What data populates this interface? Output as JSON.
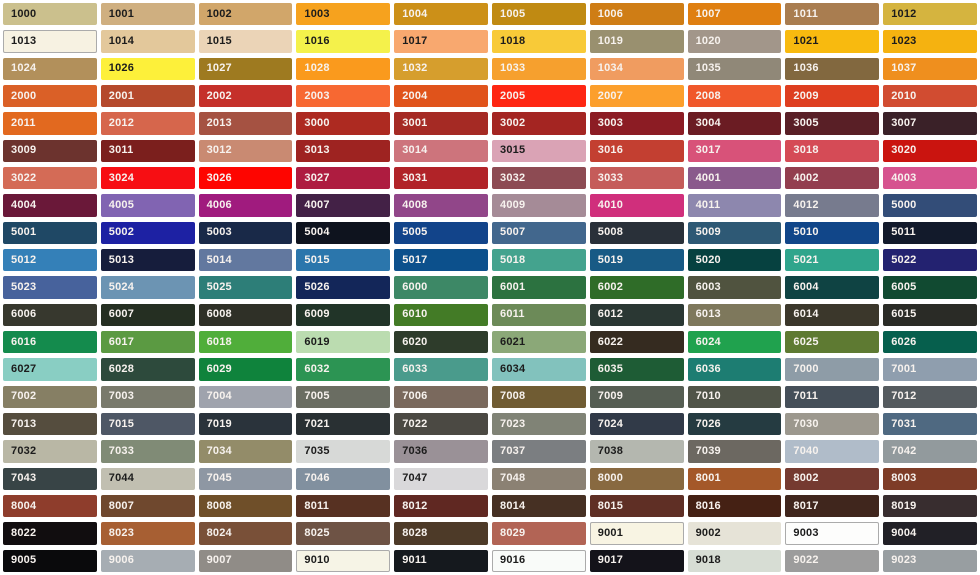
{
  "styles": {
    "background": "#FFFFFF",
    "dark_text": "#1C1C1C",
    "light_text": "#F7F2EE",
    "swatch_border": "#ABABAB"
  },
  "swatches": [
    {
      "code": "1000",
      "color": "#CBC08D",
      "text": "dark"
    },
    {
      "code": "1001",
      "color": "#CFAF80",
      "text": "dark"
    },
    {
      "code": "1002",
      "color": "#D1A66A",
      "text": "dark"
    },
    {
      "code": "1003",
      "color": "#F6A21E",
      "text": "dark"
    },
    {
      "code": "1004",
      "color": "#CC9018",
      "text": "light"
    },
    {
      "code": "1005",
      "color": "#C08A12",
      "text": "light"
    },
    {
      "code": "1006",
      "color": "#CF7D15",
      "text": "light"
    },
    {
      "code": "1007",
      "color": "#DF7F11",
      "text": "light"
    },
    {
      "code": "1011",
      "color": "#A97D50",
      "text": "light"
    },
    {
      "code": "1012",
      "color": "#D5B43F",
      "text": "dark"
    },
    {
      "code": "1013",
      "color": "#F7F2E2",
      "text": "dark",
      "bordered": true
    },
    {
      "code": "1014",
      "color": "#E3C89B",
      "text": "dark"
    },
    {
      "code": "1015",
      "color": "#EBD4B7",
      "text": "dark"
    },
    {
      "code": "1016",
      "color": "#F4F14B",
      "text": "dark"
    },
    {
      "code": "1017",
      "color": "#F8A86F",
      "text": "dark"
    },
    {
      "code": "1018",
      "color": "#F8CA38",
      "text": "dark"
    },
    {
      "code": "1019",
      "color": "#99906F",
      "text": "light"
    },
    {
      "code": "1020",
      "color": "#A2968A",
      "text": "light"
    },
    {
      "code": "1021",
      "color": "#F8BA0F",
      "text": "dark"
    },
    {
      "code": "1023",
      "color": "#F5B210",
      "text": "dark"
    },
    {
      "code": "1024",
      "color": "#B2905B",
      "text": "light"
    },
    {
      "code": "1026",
      "color": "#FDF03A",
      "text": "dark"
    },
    {
      "code": "1027",
      "color": "#9E7A20",
      "text": "light"
    },
    {
      "code": "1028",
      "color": "#FA9A1D",
      "text": "light"
    },
    {
      "code": "1032",
      "color": "#D69E2D",
      "text": "light"
    },
    {
      "code": "1033",
      "color": "#F6A02E",
      "text": "light"
    },
    {
      "code": "1034",
      "color": "#F09C60",
      "text": "light"
    },
    {
      "code": "1035",
      "color": "#908878",
      "text": "light"
    },
    {
      "code": "1036",
      "color": "#82683F",
      "text": "light"
    },
    {
      "code": "1037",
      "color": "#EF8F1E",
      "text": "light"
    },
    {
      "code": "2000",
      "color": "#DA6027",
      "text": "light"
    },
    {
      "code": "2001",
      "color": "#B5492C",
      "text": "light"
    },
    {
      "code": "2002",
      "color": "#C5302A",
      "text": "light"
    },
    {
      "code": "2003",
      "color": "#F76832",
      "text": "light"
    },
    {
      "code": "2004",
      "color": "#E0531B",
      "text": "light"
    },
    {
      "code": "2005",
      "color": "#FE2612",
      "text": "light"
    },
    {
      "code": "2007",
      "color": "#FC9F2C",
      "text": "light"
    },
    {
      "code": "2008",
      "color": "#F0582B",
      "text": "light"
    },
    {
      "code": "2009",
      "color": "#DE3E20",
      "text": "light"
    },
    {
      "code": "2010",
      "color": "#D14C31",
      "text": "light"
    },
    {
      "code": "2011",
      "color": "#E2691F",
      "text": "light"
    },
    {
      "code": "2012",
      "color": "#D6664C",
      "text": "light"
    },
    {
      "code": "2013",
      "color": "#A55242",
      "text": "light"
    },
    {
      "code": "3000",
      "color": "#AD2A21",
      "text": "light"
    },
    {
      "code": "3001",
      "color": "#A52A24",
      "text": "light"
    },
    {
      "code": "3002",
      "color": "#A42522",
      "text": "light"
    },
    {
      "code": "3003",
      "color": "#8C1C24",
      "text": "light"
    },
    {
      "code": "3004",
      "color": "#6B1C23",
      "text": "light"
    },
    {
      "code": "3005",
      "color": "#591F26",
      "text": "light"
    },
    {
      "code": "3007",
      "color": "#3A2128",
      "text": "light"
    },
    {
      "code": "3009",
      "color": "#6C332E",
      "text": "light"
    },
    {
      "code": "3011",
      "color": "#7B1F1D",
      "text": "light"
    },
    {
      "code": "3012",
      "color": "#C98A72",
      "text": "light"
    },
    {
      "code": "3013",
      "color": "#9E2321",
      "text": "light"
    },
    {
      "code": "3014",
      "color": "#CD747C",
      "text": "light"
    },
    {
      "code": "3015",
      "color": "#DAA3B5",
      "text": "dark"
    },
    {
      "code": "3016",
      "color": "#C33F31",
      "text": "light"
    },
    {
      "code": "3017",
      "color": "#D85279",
      "text": "light"
    },
    {
      "code": "3018",
      "color": "#D54B56",
      "text": "light"
    },
    {
      "code": "3020",
      "color": "#CA140F",
      "text": "light"
    },
    {
      "code": "3022",
      "color": "#D46B56",
      "text": "light"
    },
    {
      "code": "3024",
      "color": "#F70E13",
      "text": "light"
    },
    {
      "code": "3026",
      "color": "#FE0500",
      "text": "light"
    },
    {
      "code": "3027",
      "color": "#AE1C40",
      "text": "light"
    },
    {
      "code": "3031",
      "color": "#B12328",
      "text": "light"
    },
    {
      "code": "3032",
      "color": "#8D4B53",
      "text": "light"
    },
    {
      "code": "3033",
      "color": "#C55C5A",
      "text": "light"
    },
    {
      "code": "4001",
      "color": "#8A5A8C",
      "text": "light"
    },
    {
      "code": "4002",
      "color": "#933E4F",
      "text": "light"
    },
    {
      "code": "4003",
      "color": "#D6538F",
      "text": "light"
    },
    {
      "code": "4004",
      "color": "#6A1839",
      "text": "light"
    },
    {
      "code": "4005",
      "color": "#8164B2",
      "text": "light"
    },
    {
      "code": "4006",
      "color": "#A01B7E",
      "text": "light"
    },
    {
      "code": "4007",
      "color": "#432146",
      "text": "light"
    },
    {
      "code": "4008",
      "color": "#914689",
      "text": "light"
    },
    {
      "code": "4009",
      "color": "#A58B97",
      "text": "light"
    },
    {
      "code": "4010",
      "color": "#D02F7C",
      "text": "light"
    },
    {
      "code": "4011",
      "color": "#8D87AE",
      "text": "light"
    },
    {
      "code": "4012",
      "color": "#777B8E",
      "text": "light"
    },
    {
      "code": "5000",
      "color": "#334D78",
      "text": "light"
    },
    {
      "code": "5001",
      "color": "#1F4865",
      "text": "light"
    },
    {
      "code": "5002",
      "color": "#1D21A3",
      "text": "light"
    },
    {
      "code": "5003",
      "color": "#192948",
      "text": "light"
    },
    {
      "code": "5004",
      "color": "#0E131E",
      "text": "light"
    },
    {
      "code": "5005",
      "color": "#12448A",
      "text": "light"
    },
    {
      "code": "5007",
      "color": "#42678D",
      "text": "light"
    },
    {
      "code": "5008",
      "color": "#293039",
      "text": "light"
    },
    {
      "code": "5009",
      "color": "#2E5975",
      "text": "light"
    },
    {
      "code": "5010",
      "color": "#114689",
      "text": "light"
    },
    {
      "code": "5011",
      "color": "#121A2B",
      "text": "light"
    },
    {
      "code": "5012",
      "color": "#3480B8",
      "text": "light"
    },
    {
      "code": "5013",
      "color": "#161D3C",
      "text": "light"
    },
    {
      "code": "5014",
      "color": "#62789F",
      "text": "light"
    },
    {
      "code": "5015",
      "color": "#2B76AC",
      "text": "light"
    },
    {
      "code": "5017",
      "color": "#0C508C",
      "text": "light"
    },
    {
      "code": "5018",
      "color": "#44A38E",
      "text": "light"
    },
    {
      "code": "5019",
      "color": "#185A85",
      "text": "light"
    },
    {
      "code": "5020",
      "color": "#064140",
      "text": "light"
    },
    {
      "code": "5021",
      "color": "#2FA58C",
      "text": "light"
    },
    {
      "code": "5022",
      "color": "#232270",
      "text": "light"
    },
    {
      "code": "5023",
      "color": "#47629C",
      "text": "light"
    },
    {
      "code": "5024",
      "color": "#6C94B3",
      "text": "light"
    },
    {
      "code": "5025",
      "color": "#2D7E78",
      "text": "light"
    },
    {
      "code": "5026",
      "color": "#132659",
      "text": "light"
    },
    {
      "code": "6000",
      "color": "#3D8866",
      "text": "light"
    },
    {
      "code": "6001",
      "color": "#2C7240",
      "text": "light"
    },
    {
      "code": "6002",
      "color": "#2F6C28",
      "text": "light"
    },
    {
      "code": "6003",
      "color": "#50533F",
      "text": "light"
    },
    {
      "code": "6004",
      "color": "#0F4343",
      "text": "light"
    },
    {
      "code": "6005",
      "color": "#114A31",
      "text": "light"
    },
    {
      "code": "6006",
      "color": "#37382E",
      "text": "light"
    },
    {
      "code": "6007",
      "color": "#252F22",
      "text": "light"
    },
    {
      "code": "6008",
      "color": "#2F3027",
      "text": "light"
    },
    {
      "code": "6009",
      "color": "#213428",
      "text": "light"
    },
    {
      "code": "6010",
      "color": "#437B26",
      "text": "light"
    },
    {
      "code": "6011",
      "color": "#6C8A58",
      "text": "light"
    },
    {
      "code": "6012",
      "color": "#2A3733",
      "text": "light"
    },
    {
      "code": "6013",
      "color": "#7E785C",
      "text": "light"
    },
    {
      "code": "6014",
      "color": "#3B372B",
      "text": "light"
    },
    {
      "code": "6015",
      "color": "#2A2B26",
      "text": "light"
    },
    {
      "code": "6016",
      "color": "#148B4D",
      "text": "light"
    },
    {
      "code": "6017",
      "color": "#5B9A42",
      "text": "light"
    },
    {
      "code": "6018",
      "color": "#50AE3A",
      "text": "light"
    },
    {
      "code": "6019",
      "color": "#BBDCB0",
      "text": "dark"
    },
    {
      "code": "6020",
      "color": "#2E3C2B",
      "text": "light"
    },
    {
      "code": "6021",
      "color": "#8BA878",
      "text": "dark"
    },
    {
      "code": "6022",
      "color": "#352B20",
      "text": "light"
    },
    {
      "code": "6024",
      "color": "#20A24E",
      "text": "light"
    },
    {
      "code": "6025",
      "color": "#5E7A32",
      "text": "light"
    },
    {
      "code": "6026",
      "color": "#065F4D",
      "text": "light"
    },
    {
      "code": "6027",
      "color": "#89CEC3",
      "text": "dark"
    },
    {
      "code": "6028",
      "color": "#2D4A3C",
      "text": "light"
    },
    {
      "code": "6029",
      "color": "#0F833C",
      "text": "light"
    },
    {
      "code": "6032",
      "color": "#2C9453",
      "text": "light"
    },
    {
      "code": "6033",
      "color": "#4A9B8C",
      "text": "light"
    },
    {
      "code": "6034",
      "color": "#82C2BD",
      "text": "dark"
    },
    {
      "code": "6035",
      "color": "#1E5C35",
      "text": "light"
    },
    {
      "code": "6036",
      "color": "#1D7D72",
      "text": "light"
    },
    {
      "code": "7000",
      "color": "#8E9CA7",
      "text": "light"
    },
    {
      "code": "7001",
      "color": "#8F9EAE",
      "text": "light"
    },
    {
      "code": "7002",
      "color": "#867F64",
      "text": "light"
    },
    {
      "code": "7003",
      "color": "#797A6C",
      "text": "light"
    },
    {
      "code": "7004",
      "color": "#9FA3AD",
      "text": "light"
    },
    {
      "code": "7005",
      "color": "#6A6D62",
      "text": "light"
    },
    {
      "code": "7006",
      "color": "#7A695D",
      "text": "light"
    },
    {
      "code": "7008",
      "color": "#705C33",
      "text": "light"
    },
    {
      "code": "7009",
      "color": "#565E53",
      "text": "light"
    },
    {
      "code": "7010",
      "color": "#505448",
      "text": "light"
    },
    {
      "code": "7011",
      "color": "#454F59",
      "text": "light"
    },
    {
      "code": "7012",
      "color": "#555B5F",
      "text": "light"
    },
    {
      "code": "7013",
      "color": "#554D3E",
      "text": "light"
    },
    {
      "code": "7015",
      "color": "#4E5765",
      "text": "light"
    },
    {
      "code": "7019",
      "color": "#2A333B",
      "text": "light"
    },
    {
      "code": "7021",
      "color": "#293033",
      "text": "light"
    },
    {
      "code": "7022",
      "color": "#4B4943",
      "text": "light"
    },
    {
      "code": "7023",
      "color": "#808376",
      "text": "light"
    },
    {
      "code": "7024",
      "color": "#313A48",
      "text": "light"
    },
    {
      "code": "7026",
      "color": "#253B41",
      "text": "light"
    },
    {
      "code": "7030",
      "color": "#9C988E",
      "text": "light"
    },
    {
      "code": "7031",
      "color": "#4F6981",
      "text": "light"
    },
    {
      "code": "7032",
      "color": "#B9B7A5",
      "text": "dark"
    },
    {
      "code": "7033",
      "color": "#808B76",
      "text": "light"
    },
    {
      "code": "7034",
      "color": "#938C69",
      "text": "light"
    },
    {
      "code": "7035",
      "color": "#D7D9D7",
      "text": "dark"
    },
    {
      "code": "7036",
      "color": "#9A9197",
      "text": "dark"
    },
    {
      "code": "7037",
      "color": "#7B7E81",
      "text": "light"
    },
    {
      "code": "7038",
      "color": "#B4B7AF",
      "text": "dark"
    },
    {
      "code": "7039",
      "color": "#6C6861",
      "text": "light"
    },
    {
      "code": "7040",
      "color": "#B0BCC9",
      "text": "light"
    },
    {
      "code": "7042",
      "color": "#929A9D",
      "text": "light"
    },
    {
      "code": "7043",
      "color": "#384446",
      "text": "light"
    },
    {
      "code": "7044",
      "color": "#C1BFB1",
      "text": "dark"
    },
    {
      "code": "7045",
      "color": "#8E97A3",
      "text": "light"
    },
    {
      "code": "7046",
      "color": "#81909F",
      "text": "light"
    },
    {
      "code": "7047",
      "color": "#D9D8DA",
      "text": "dark"
    },
    {
      "code": "7048",
      "color": "#8B8173",
      "text": "light"
    },
    {
      "code": "8000",
      "color": "#886940",
      "text": "light"
    },
    {
      "code": "8001",
      "color": "#A45829",
      "text": "light"
    },
    {
      "code": "8002",
      "color": "#753A30",
      "text": "light"
    },
    {
      "code": "8003",
      "color": "#7E3C27",
      "text": "light"
    },
    {
      "code": "8004",
      "color": "#8E3D2C",
      "text": "light"
    },
    {
      "code": "8007",
      "color": "#6F482E",
      "text": "light"
    },
    {
      "code": "8008",
      "color": "#6F4F29",
      "text": "light"
    },
    {
      "code": "8011",
      "color": "#573122",
      "text": "light"
    },
    {
      "code": "8012",
      "color": "#602822",
      "text": "light"
    },
    {
      "code": "8014",
      "color": "#463023",
      "text": "light"
    },
    {
      "code": "8015",
      "color": "#5F2F25",
      "text": "light"
    },
    {
      "code": "8016",
      "color": "#452114",
      "text": "light"
    },
    {
      "code": "8017",
      "color": "#40261D",
      "text": "light"
    },
    {
      "code": "8019",
      "color": "#382D2F",
      "text": "light"
    },
    {
      "code": "8022",
      "color": "#110D0F",
      "text": "light"
    },
    {
      "code": "8023",
      "color": "#A75F33",
      "text": "light"
    },
    {
      "code": "8024",
      "color": "#795038",
      "text": "light"
    },
    {
      "code": "8025",
      "color": "#6E5345",
      "text": "light"
    },
    {
      "code": "8028",
      "color": "#4D3A28",
      "text": "light"
    },
    {
      "code": "8029",
      "color": "#B26455",
      "text": "light"
    },
    {
      "code": "9001",
      "color": "#F8F4E3",
      "text": "dark",
      "bordered": true
    },
    {
      "code": "9002",
      "color": "#E6E3D7",
      "text": "dark"
    },
    {
      "code": "9003",
      "color": "#FDFDFC",
      "text": "dark",
      "bordered": true
    },
    {
      "code": "9004",
      "color": "#212026",
      "text": "light"
    },
    {
      "code": "9005",
      "color": "#0A0A0C",
      "text": "light"
    },
    {
      "code": "9006",
      "color": "#A6ADB3",
      "text": "light"
    },
    {
      "code": "9007",
      "color": "#908C87",
      "text": "light"
    },
    {
      "code": "9010",
      "color": "#F6F4E6",
      "text": "dark",
      "bordered": true
    },
    {
      "code": "9011",
      "color": "#15191E",
      "text": "light"
    },
    {
      "code": "9016",
      "color": "#F9FBF9",
      "text": "dark",
      "bordered": true
    },
    {
      "code": "9017",
      "color": "#14131A",
      "text": "light"
    },
    {
      "code": "9018",
      "color": "#D7DDD4",
      "text": "dark"
    },
    {
      "code": "9022",
      "color": "#9C9C9C",
      "text": "light"
    },
    {
      "code": "9023",
      "color": "#989EA1",
      "text": "light"
    }
  ]
}
